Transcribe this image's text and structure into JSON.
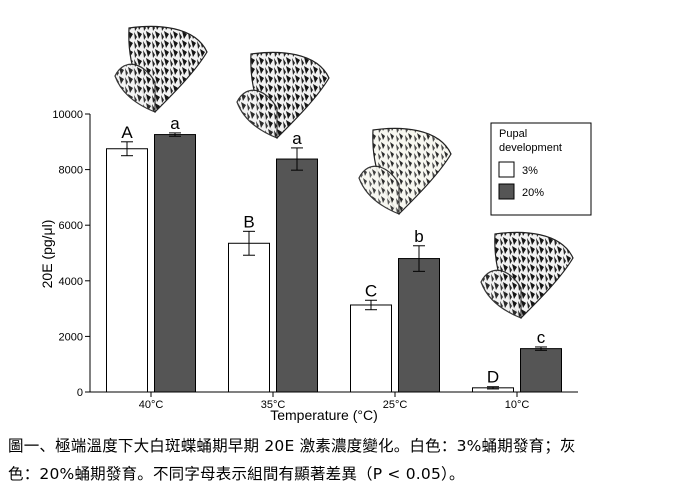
{
  "chart_data": {
    "type": "bar",
    "categories": [
      "40°C",
      "35°C",
      "25°C",
      "10°C"
    ],
    "series": [
      {
        "name": "3%",
        "color": "#ffffff",
        "values": [
          8750,
          5350,
          3130,
          150
        ],
        "errors": [
          250,
          430,
          170,
          40
        ],
        "letters": [
          "A",
          "B",
          "C",
          "D"
        ]
      },
      {
        "name": "20%",
        "color": "#555555",
        "values": [
          9260,
          8380,
          4800,
          1560
        ],
        "errors": [
          60,
          400,
          460,
          60
        ],
        "letters": [
          "a",
          "a",
          "b",
          "c"
        ]
      }
    ],
    "xlabel": "Temperature (°C)",
    "ylabel": "20E (pg/μl)",
    "ylim": [
      0,
      10000
    ],
    "yticks": [
      0,
      2000,
      4000,
      6000,
      8000,
      10000
    ],
    "legend_title": "Pupal development",
    "legend_position": "top-right",
    "grid": false
  },
  "caption": {
    "line1": "圖一、極端溫度下大白斑蝶蛹期早期 20E 激素濃度變化。白色：3%蛹期發育；灰",
    "line2": "色：20%蛹期發育。不同字母表示組間有顯著差異（P < 0.05）。"
  }
}
